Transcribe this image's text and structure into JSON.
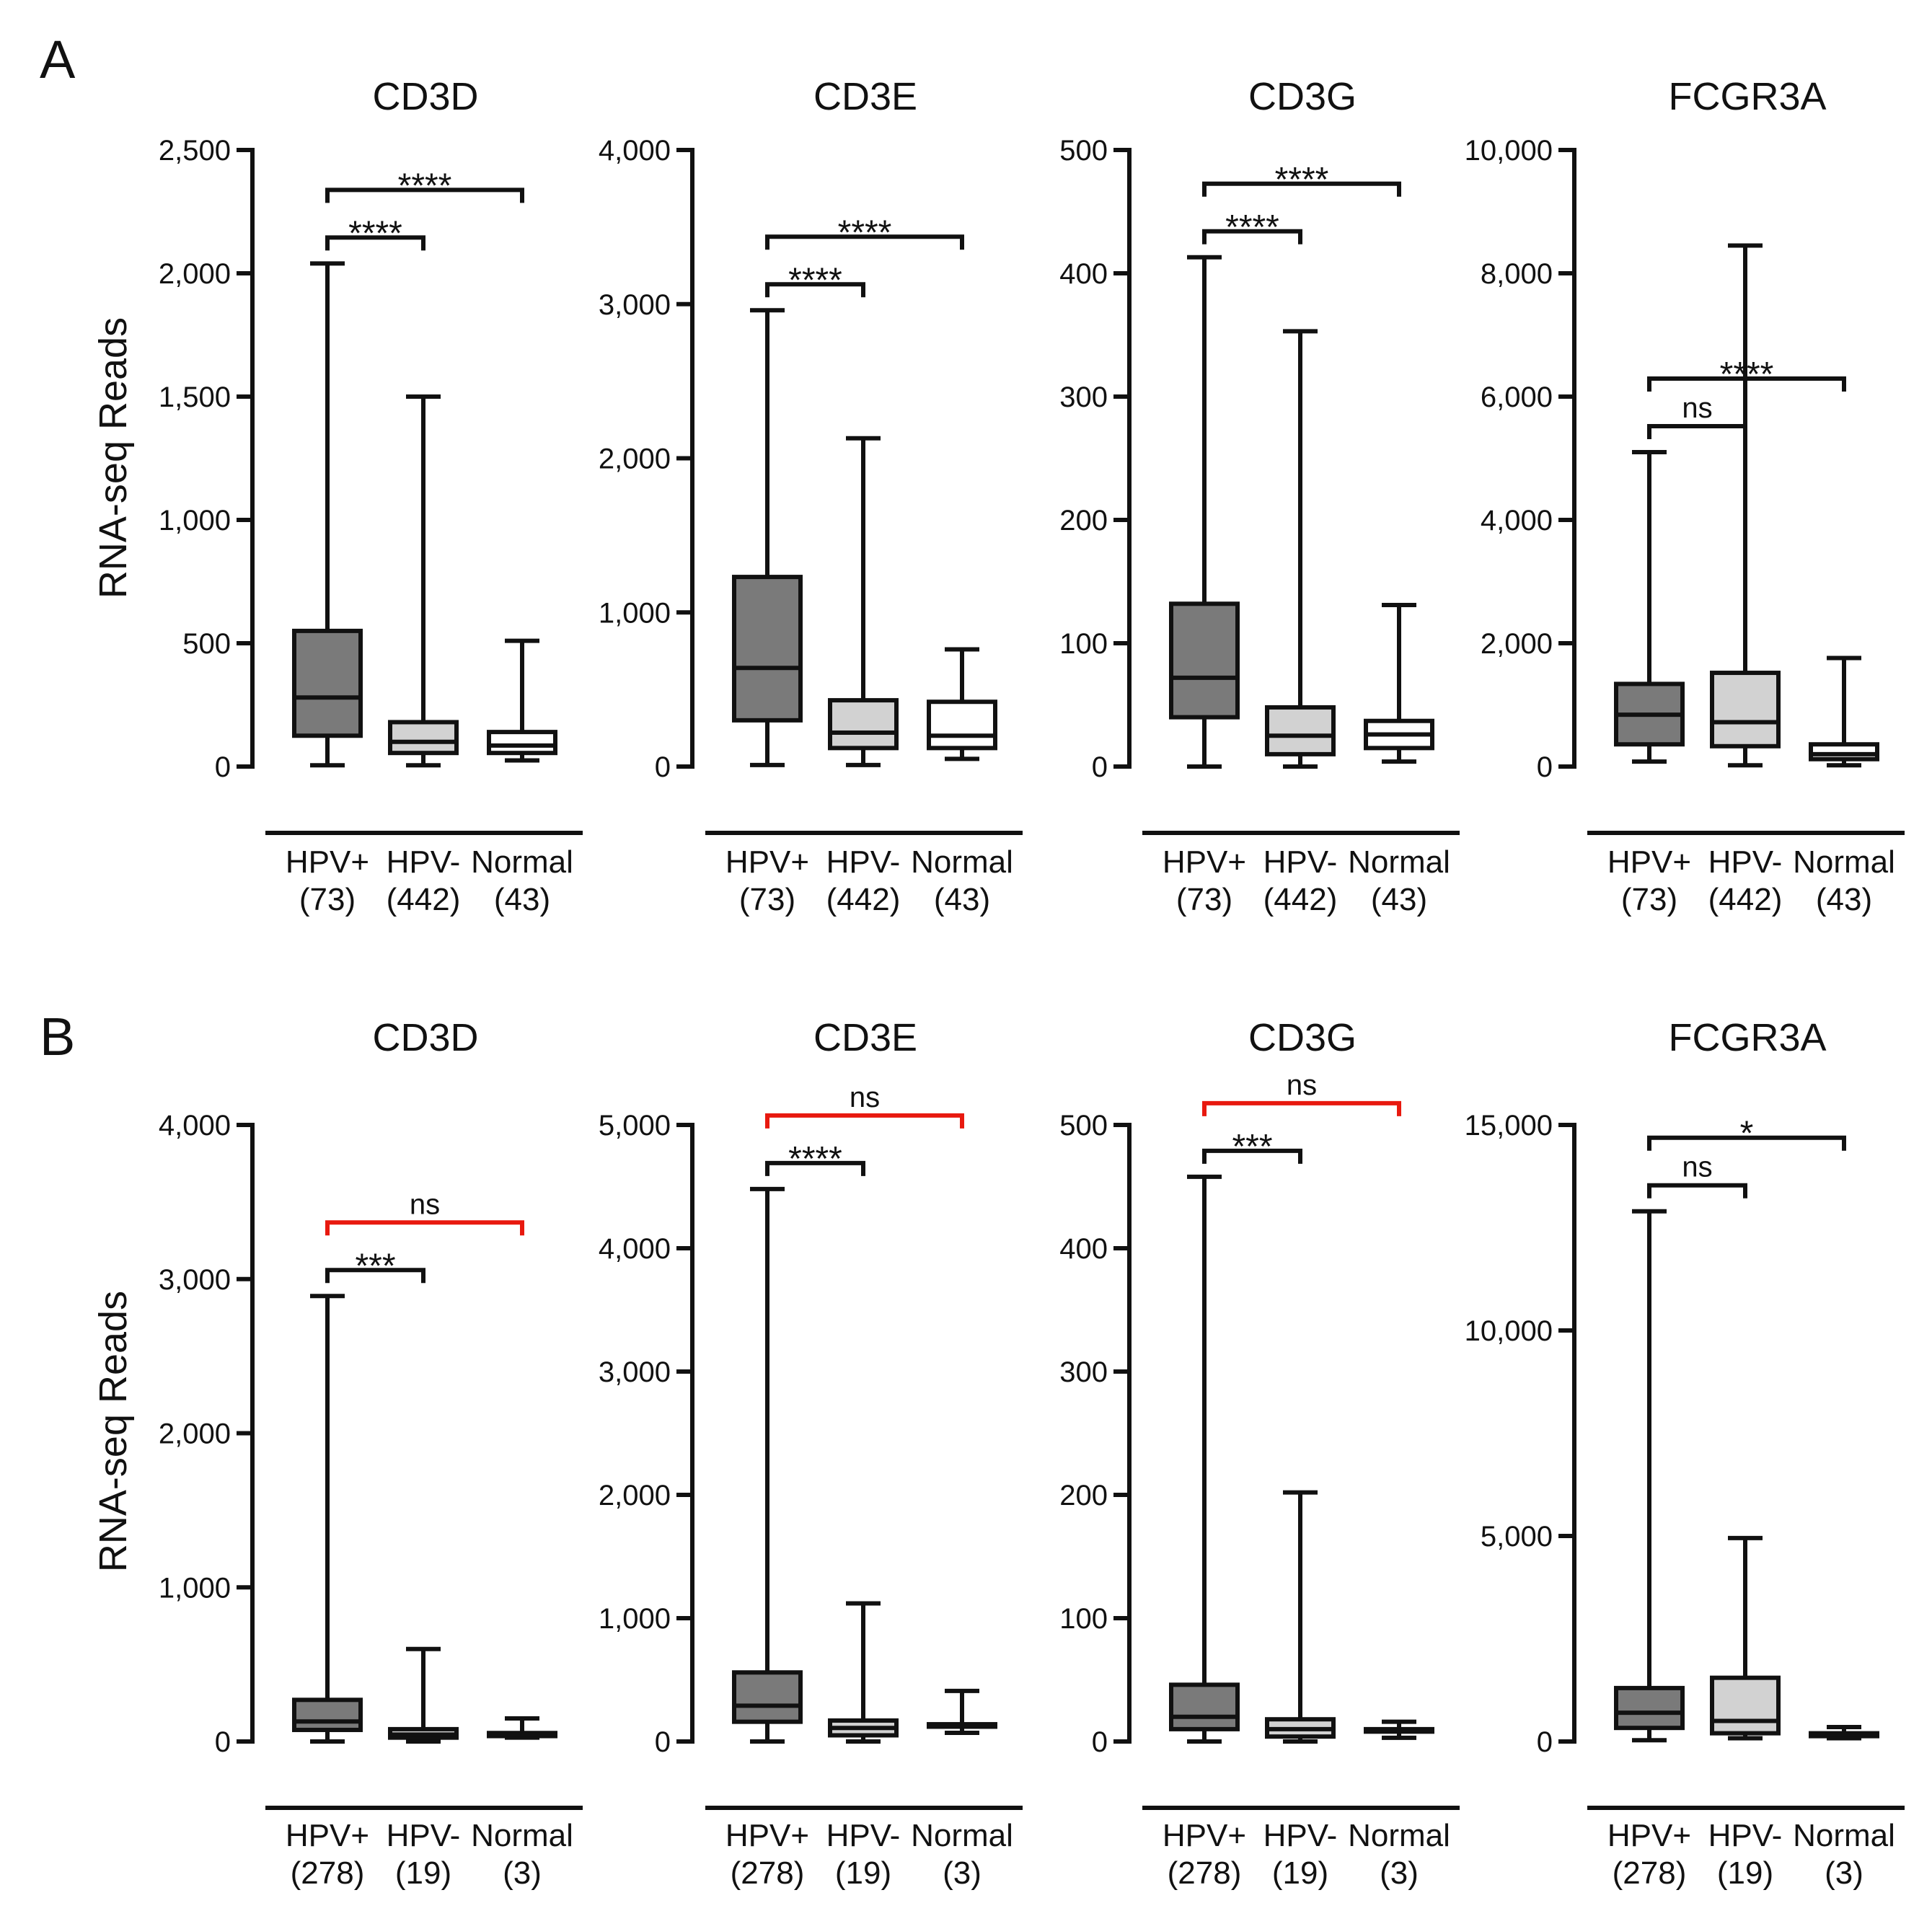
{
  "panel_labels": [
    "A",
    "B"
  ],
  "ylabel": "RNA-seq Reads",
  "colors": {
    "hpv_pos": "#7a7a7a",
    "hpv_neg": "#d2d2d2",
    "normal": "#ffffff",
    "ink": "#111111",
    "ns_red": "#e8190f"
  },
  "chart_data": [
    {
      "type": "box",
      "panel": "A",
      "title": "CD3D",
      "ylabel": "RNA-seq Reads",
      "ylim": [
        0,
        2500
      ],
      "yticks": [
        0,
        500,
        1000,
        1500,
        2000,
        2500
      ],
      "ytick_labels": [
        "0",
        "500",
        "1,000",
        "1,500",
        "2,000",
        "2,500"
      ],
      "categories": [
        "HPV+",
        "HPV-",
        "Normal"
      ],
      "counts": [
        "(73)",
        "(442)",
        "(43)"
      ],
      "boxes": [
        {
          "min": 5,
          "q1": 125,
          "median": 280,
          "q3": 550,
          "max": 2040
        },
        {
          "min": 5,
          "q1": 55,
          "median": 100,
          "q3": 180,
          "max": 1500
        },
        {
          "min": 25,
          "q1": 55,
          "median": 85,
          "q3": 140,
          "max": 510
        }
      ],
      "brackets": [
        {
          "from": 0,
          "to": 1,
          "label": "****",
          "level": 0,
          "red": false
        },
        {
          "from": 0,
          "to": 2,
          "label": "****",
          "level": 1,
          "red": false
        }
      ]
    },
    {
      "type": "box",
      "panel": "A",
      "title": "CD3E",
      "ylabel": "",
      "ylim": [
        0,
        4000
      ],
      "yticks": [
        0,
        1000,
        2000,
        3000,
        4000
      ],
      "ytick_labels": [
        "0",
        "1,000",
        "2,000",
        "3,000",
        "4,000"
      ],
      "categories": [
        "HPV+",
        "HPV-",
        "Normal"
      ],
      "counts": [
        "(73)",
        "(442)",
        "(43)"
      ],
      "boxes": [
        {
          "min": 10,
          "q1": 300,
          "median": 640,
          "q3": 1230,
          "max": 2960
        },
        {
          "min": 10,
          "q1": 120,
          "median": 220,
          "q3": 430,
          "max": 2130
        },
        {
          "min": 50,
          "q1": 120,
          "median": 200,
          "q3": 420,
          "max": 760
        }
      ],
      "brackets": [
        {
          "from": 0,
          "to": 1,
          "label": "****",
          "level": 0,
          "red": false
        },
        {
          "from": 0,
          "to": 2,
          "label": "****",
          "level": 1,
          "red": false
        }
      ]
    },
    {
      "type": "box",
      "panel": "A",
      "title": "CD3G",
      "ylabel": "",
      "ylim": [
        0,
        500
      ],
      "yticks": [
        0,
        100,
        200,
        300,
        400,
        500
      ],
      "ytick_labels": [
        "0",
        "100",
        "200",
        "300",
        "400",
        "500"
      ],
      "categories": [
        "HPV+",
        "HPV-",
        "Normal"
      ],
      "counts": [
        "(73)",
        "(442)",
        "(43)"
      ],
      "boxes": [
        {
          "min": 0,
          "q1": 40,
          "median": 72,
          "q3": 132,
          "max": 413
        },
        {
          "min": 0,
          "q1": 10,
          "median": 25,
          "q3": 48,
          "max": 353
        },
        {
          "min": 4,
          "q1": 15,
          "median": 26,
          "q3": 37,
          "max": 131
        }
      ],
      "brackets": [
        {
          "from": 0,
          "to": 1,
          "label": "****",
          "level": 0,
          "red": false
        },
        {
          "from": 0,
          "to": 2,
          "label": "****",
          "level": 1,
          "red": false
        }
      ]
    },
    {
      "type": "box",
      "panel": "A",
      "title": "FCGR3A",
      "ylabel": "",
      "ylim": [
        0,
        10000
      ],
      "yticks": [
        0,
        2000,
        4000,
        6000,
        8000,
        10000
      ],
      "ytick_labels": [
        "0",
        "2,000",
        "4,000",
        "6,000",
        "8,000",
        "10,000"
      ],
      "categories": [
        "HPV+",
        "HPV-",
        "Normal"
      ],
      "counts": [
        "(73)",
        "(442)",
        "(43)"
      ],
      "boxes": [
        {
          "min": 80,
          "q1": 360,
          "median": 840,
          "q3": 1340,
          "max": 5100
        },
        {
          "min": 20,
          "q1": 330,
          "median": 720,
          "q3": 1520,
          "max": 8450
        },
        {
          "min": 20,
          "q1": 120,
          "median": 200,
          "q3": 360,
          "max": 1760
        }
      ],
      "brackets": [
        {
          "from": 0,
          "to": 1,
          "label": "ns",
          "level": 0,
          "red": false
        },
        {
          "from": 0,
          "to": 2,
          "label": "****",
          "level": 1,
          "red": false
        }
      ]
    },
    {
      "type": "box",
      "panel": "B",
      "title": "CD3D",
      "ylabel": "RNA-seq Reads",
      "ylim": [
        0,
        4000
      ],
      "yticks": [
        0,
        1000,
        2000,
        3000,
        4000
      ],
      "ytick_labels": [
        "0",
        "1,000",
        "2,000",
        "3,000",
        "4,000"
      ],
      "categories": [
        "HPV+",
        "HPV-",
        "Normal"
      ],
      "counts": [
        "(278)",
        "(19)",
        "(3)"
      ],
      "boxes": [
        {
          "min": 0,
          "q1": 75,
          "median": 130,
          "q3": 270,
          "max": 2890
        },
        {
          "min": 0,
          "q1": 25,
          "median": 45,
          "q3": 80,
          "max": 600
        },
        {
          "min": 25,
          "q1": 35,
          "median": 45,
          "q3": 55,
          "max": 150
        }
      ],
      "brackets": [
        {
          "from": 0,
          "to": 1,
          "label": "***",
          "level": 0,
          "red": false
        },
        {
          "from": 0,
          "to": 2,
          "label": "ns",
          "level": 1,
          "red": true
        }
      ]
    },
    {
      "type": "box",
      "panel": "B",
      "title": "CD3E",
      "ylabel": "",
      "ylim": [
        0,
        5000
      ],
      "yticks": [
        0,
        1000,
        2000,
        3000,
        4000,
        5000
      ],
      "ytick_labels": [
        "0",
        "1,000",
        "2,000",
        "3,000",
        "4,000",
        "5,000"
      ],
      "categories": [
        "HPV+",
        "HPV-",
        "Normal"
      ],
      "counts": [
        "(278)",
        "(19)",
        "(3)"
      ],
      "boxes": [
        {
          "min": 0,
          "q1": 160,
          "median": 290,
          "q3": 560,
          "max": 4480
        },
        {
          "min": 0,
          "q1": 50,
          "median": 110,
          "q3": 170,
          "max": 1120
        },
        {
          "min": 70,
          "q1": 120,
          "median": 130,
          "q3": 140,
          "max": 410
        }
      ],
      "brackets": [
        {
          "from": 0,
          "to": 1,
          "label": "****",
          "level": 0,
          "red": false
        },
        {
          "from": 0,
          "to": 2,
          "label": "ns",
          "level": 1,
          "red": true
        }
      ]
    },
    {
      "type": "box",
      "panel": "B",
      "title": "CD3G",
      "ylabel": "",
      "ylim": [
        0,
        500
      ],
      "yticks": [
        0,
        100,
        200,
        300,
        400,
        500
      ],
      "ytick_labels": [
        "0",
        "100",
        "200",
        "300",
        "400",
        "500"
      ],
      "categories": [
        "HPV+",
        "HPV-",
        "Normal"
      ],
      "counts": [
        "(278)",
        "(19)",
        "(3)"
      ],
      "boxes": [
        {
          "min": 0,
          "q1": 10,
          "median": 20,
          "q3": 46,
          "max": 458
        },
        {
          "min": 0,
          "q1": 4,
          "median": 10,
          "q3": 18,
          "max": 202
        },
        {
          "min": 3,
          "q1": 8,
          "median": 9,
          "q3": 10,
          "max": 16
        }
      ],
      "brackets": [
        {
          "from": 0,
          "to": 1,
          "label": "***",
          "level": 0,
          "red": false
        },
        {
          "from": 0,
          "to": 2,
          "label": "ns",
          "level": 1,
          "red": true
        }
      ]
    },
    {
      "type": "box",
      "panel": "B",
      "title": "FCGR3A",
      "ylabel": "",
      "ylim": [
        0,
        15000
      ],
      "yticks": [
        0,
        5000,
        10000,
        15000
      ],
      "ytick_labels": [
        "0",
        "5,000",
        "10,000",
        "15,000"
      ],
      "categories": [
        "HPV+",
        "HPV-",
        "Normal"
      ],
      "counts": [
        "(278)",
        "(19)",
        "(3)"
      ],
      "boxes": [
        {
          "min": 30,
          "q1": 330,
          "median": 700,
          "q3": 1300,
          "max": 12900
        },
        {
          "min": 80,
          "q1": 200,
          "median": 500,
          "q3": 1550,
          "max": 4950
        },
        {
          "min": 80,
          "q1": 130,
          "median": 160,
          "q3": 200,
          "max": 350
        }
      ],
      "brackets": [
        {
          "from": 0,
          "to": 1,
          "label": "ns",
          "level": 0,
          "red": false
        },
        {
          "from": 0,
          "to": 2,
          "label": "*",
          "level": 1,
          "red": false
        }
      ]
    }
  ]
}
